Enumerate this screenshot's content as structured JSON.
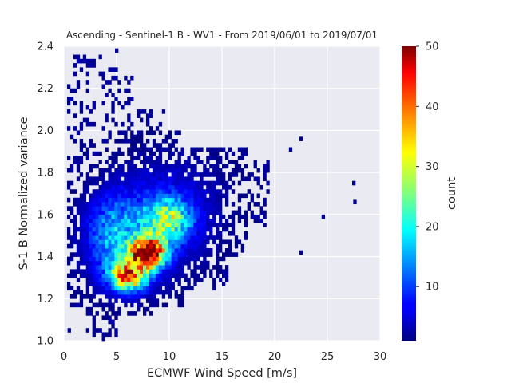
{
  "chart_data": {
    "type": "heatmap",
    "title": "Ascending - Sentinel-1 B - WV1 - From 2019/06/01 to 2019/07/01",
    "xlabel": "ECMWF Wind Speed [m/s]",
    "ylabel": "S-1 B Normalized variance",
    "xlim": [
      0,
      30
    ],
    "ylim": [
      1.0,
      2.4
    ],
    "x_ticks": [
      "0",
      "5",
      "10",
      "15",
      "20",
      "25",
      "30"
    ],
    "y_ticks": [
      "1.0",
      "1.2",
      "1.4",
      "1.6",
      "1.8",
      "2.0",
      "2.2",
      "2.4"
    ],
    "x_tick_values": [
      0,
      5,
      10,
      15,
      20,
      25,
      30
    ],
    "y_tick_values": [
      1.0,
      1.2,
      1.4,
      1.6,
      1.8,
      2.0,
      2.2,
      2.4
    ],
    "bin_size": {
      "x": 0.3,
      "y": 0.02
    },
    "colorbar": {
      "label": "count",
      "colormap": "jet",
      "range": [
        1,
        50
      ],
      "ticks": [
        "10",
        "20",
        "30",
        "40",
        "50"
      ],
      "tick_values": [
        10,
        20,
        30,
        40,
        50
      ]
    },
    "density_model": {
      "peak": {
        "x": 8.0,
        "y": 1.42,
        "count": 48
      },
      "core_peaks": [
        {
          "x": 8.0,
          "y": 1.42,
          "count": 48
        },
        {
          "x": 6.2,
          "y": 1.31,
          "count": 36
        },
        {
          "x": 9.8,
          "y": 1.58,
          "count": 22
        },
        {
          "x": 4.8,
          "y": 1.5,
          "count": 12
        }
      ],
      "outliers": [
        {
          "x": 27.5,
          "y": 1.75
        },
        {
          "x": 27.6,
          "y": 1.66
        },
        {
          "x": 24.6,
          "y": 1.59
        },
        {
          "x": 22.5,
          "y": 1.42
        },
        {
          "x": 0.5,
          "y": 1.05
        },
        {
          "x": 5.0,
          "y": 2.38
        },
        {
          "x": 22.5,
          "y": 1.96
        },
        {
          "x": 21.5,
          "y": 1.91
        }
      ]
    },
    "grid": true,
    "background": "#eaeaf2"
  }
}
